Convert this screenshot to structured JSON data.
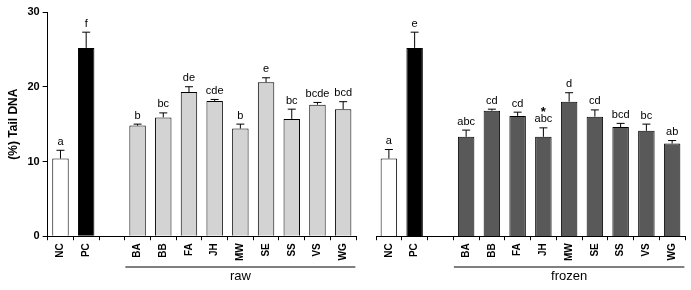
{
  "chart_data": [
    {
      "type": "bar",
      "ylabel": "(%) Tail DNA",
      "xlabel": "raw",
      "categories": [
        "NC",
        "PC",
        "BA",
        "BB",
        "FA",
        "JH",
        "MW",
        "SE",
        "SS",
        "VS",
        "WG"
      ],
      "values": [
        10.4,
        25.2,
        14.8,
        15.9,
        19.3,
        18.1,
        14.4,
        20.6,
        15.7,
        17.6,
        17.0
      ],
      "errors": [
        1.1,
        2.1,
        0.2,
        0.6,
        0.7,
        0.2,
        0.6,
        0.6,
        1.3,
        0.3,
        1.0
      ],
      "letters": [
        "a",
        "f",
        "b",
        "bc",
        "de",
        "cde",
        "b",
        "e",
        "bc",
        "bcde",
        "bcd"
      ],
      "colors": [
        "#ffffff",
        "#000000",
        "#d3d3d3",
        "#d3d3d3",
        "#d3d3d3",
        "#d3d3d3",
        "#d3d3d3",
        "#d3d3d3",
        "#d3d3d3",
        "#d3d3d3",
        "#d3d3d3"
      ],
      "ylim": [
        0,
        30
      ],
      "yticks": [
        0,
        10,
        20,
        30
      ],
      "grid": false
    },
    {
      "type": "bar",
      "xlabel": "frozen",
      "categories": [
        "NC",
        "PC",
        "BA",
        "BB",
        "FA",
        "JH",
        "MW",
        "SE",
        "SS",
        "VS",
        "WG"
      ],
      "values": [
        10.4,
        25.2,
        13.3,
        16.8,
        16.1,
        13.3,
        18.0,
        16.0,
        14.6,
        14.1,
        12.4
      ],
      "errors": [
        1.2,
        2.1,
        0.9,
        0.2,
        0.5,
        1.2,
        1.2,
        0.9,
        0.5,
        0.9,
        0.4
      ],
      "letters": [
        "a",
        "e",
        "abc",
        "cd",
        "cd",
        "abc",
        "d",
        "cd",
        "bcd",
        "bc",
        "ab"
      ],
      "annotations": [
        {
          "category": "JH",
          "text": "*"
        }
      ],
      "colors": [
        "#ffffff",
        "#000000",
        "#595959",
        "#595959",
        "#595959",
        "#595959",
        "#595959",
        "#595959",
        "#595959",
        "#595959",
        "#595959"
      ],
      "ylim": [
        0,
        30
      ],
      "yticks": [
        0,
        10,
        20,
        30
      ],
      "grid": false,
      "tick_labels": "x"
    }
  ]
}
